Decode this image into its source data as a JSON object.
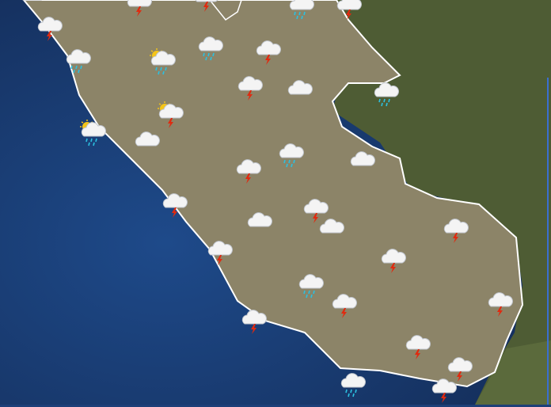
{
  "map": {
    "region": "Lazio",
    "colors": {
      "sea": "#1d3f78",
      "land_region": "#8c8468",
      "land_outside": "#4a5a30",
      "border": "#ffffff"
    },
    "icon_types": {
      "cloud": "cloud-icon",
      "storm": "thunderstorm-icon",
      "rain": "rain-icon",
      "sun-rain": "sun-cloud-rain-icon",
      "sun-storm": "sun-cloud-storm-icon"
    },
    "symbols": [
      "cloud",
      "storm",
      "storm",
      "rain",
      "storm",
      "storm",
      "rain",
      "sun-rain",
      "rain",
      "storm",
      "storm",
      "cloud",
      "rain",
      "sun-storm",
      "sun-rain",
      "cloud",
      "rain",
      "storm",
      "cloud",
      "storm",
      "storm",
      "cloud",
      "cloud",
      "storm",
      "storm",
      "storm",
      "rain",
      "storm",
      "storm",
      "storm",
      "storm",
      "storm",
      "rain",
      "storm"
    ]
  }
}
